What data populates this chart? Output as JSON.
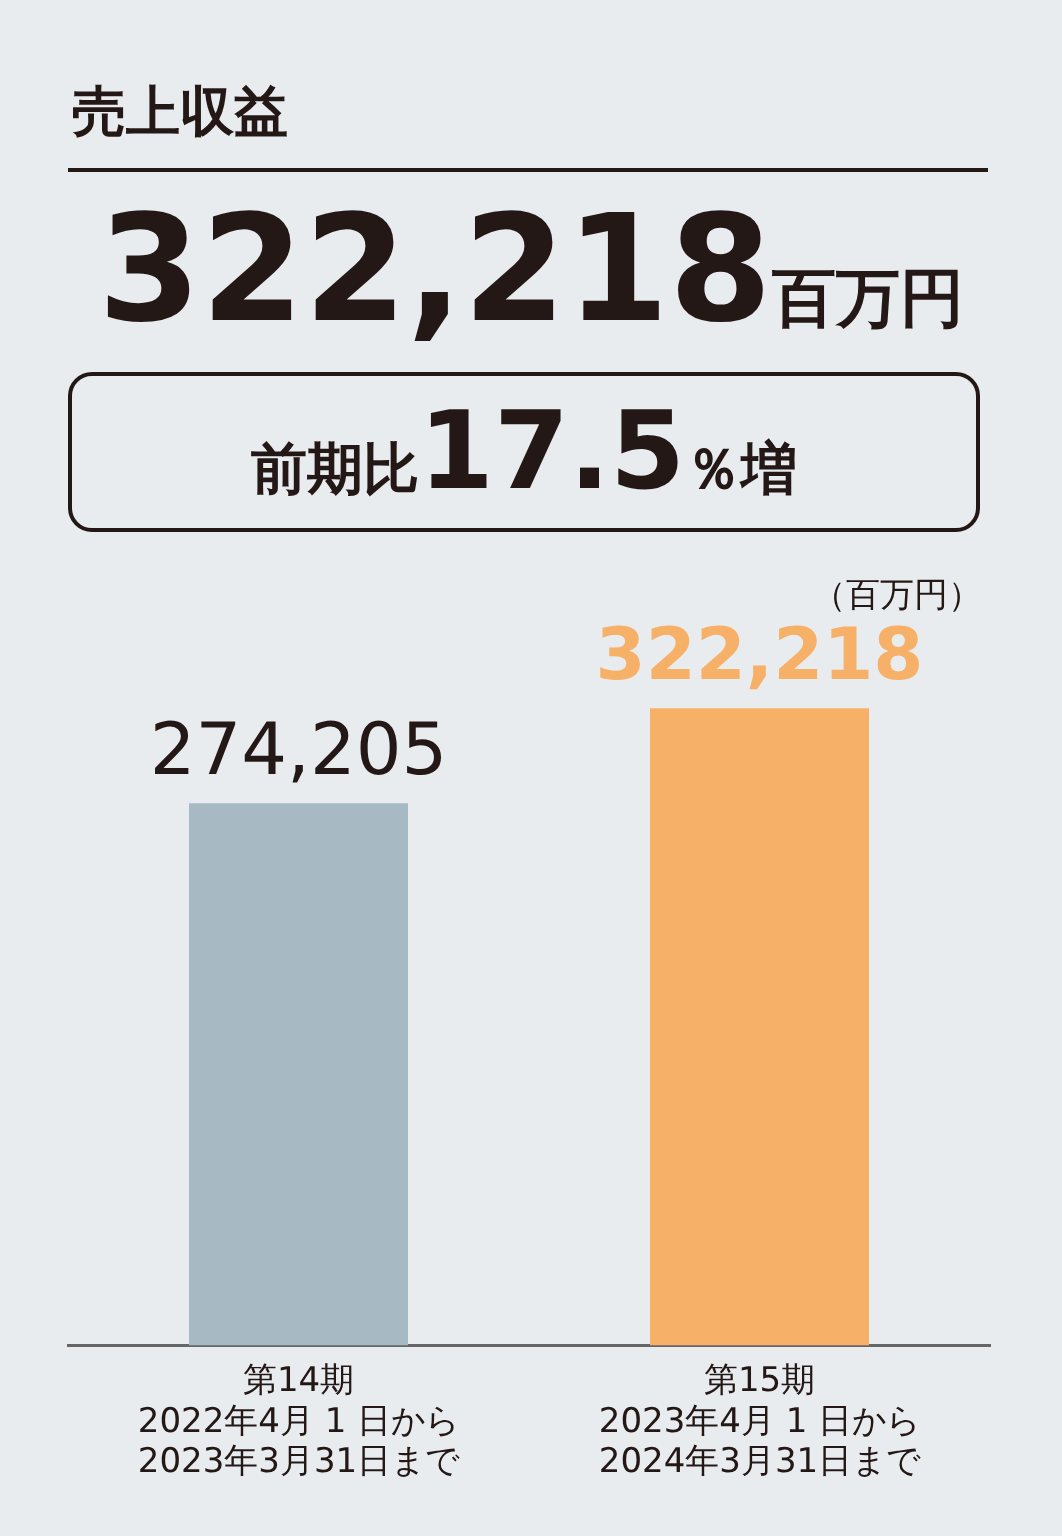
{
  "chart_data": {
    "type": "bar",
    "title": "売上収益",
    "subtitle": "322,218百万円",
    "annotations": [
      "前期比17.5％増"
    ],
    "ylabel": "（百万円）",
    "categories": [
      "第14期\n2022年4月 1 日から\n2023年3月31日まで",
      "第15期\n2023年4月 1 日から\n2024年3月31日まで"
    ],
    "values": [
      274205,
      322218
    ],
    "colors": [
      "#a7bac3",
      "#f6b067"
    ],
    "value_labels": [
      "274,205",
      "322,218"
    ]
  }
}
